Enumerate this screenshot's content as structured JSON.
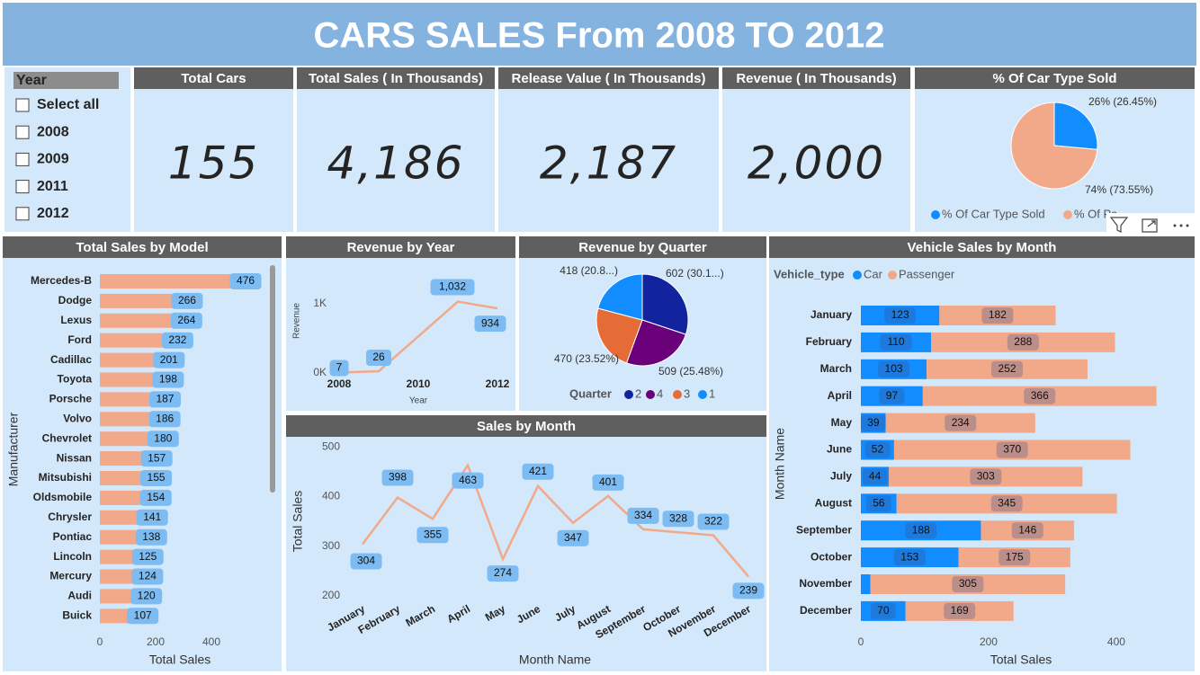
{
  "title": "CARS SALES From 2008 TO 2012",
  "slicer": {
    "title": "Year",
    "options": [
      "Select all",
      "2008",
      "2009",
      "2011",
      "2012"
    ]
  },
  "kpis": [
    {
      "label": "Total Cars",
      "value": "155"
    },
    {
      "label": "Total Sales ( In Thousands)",
      "value": "4,186"
    },
    {
      "label": "Release Value ( In Thousands)",
      "value": "2,187"
    },
    {
      "label": "Revenue ( In Thousands)",
      "value": "2,000"
    }
  ],
  "chart_data": [
    {
      "type": "pie",
      "title": "% Of Car Type Sold",
      "categories": [
        "% Of Car Type Sold",
        "% Of Pa"
      ],
      "values": [
        26.45,
        73.55
      ],
      "value_labels": [
        "26% (26.45%)",
        "74% (73.55%)"
      ],
      "colors": [
        "#118DFF",
        "#F2A98A"
      ]
    },
    {
      "type": "hbar",
      "title": "Total Sales by Model",
      "categories": [
        "Mercedes-B",
        "Dodge",
        "Lexus",
        "Ford",
        "Cadillac",
        "Toyota",
        "Porsche",
        "Volvo",
        "Chevrolet",
        "Nissan",
        "Mitsubishi",
        "Oldsmobile",
        "Chrysler",
        "Pontiac",
        "Lincoln",
        "Mercury",
        "Audi",
        "Buick"
      ],
      "values": [
        476,
        266,
        264,
        232,
        201,
        198,
        187,
        186,
        180,
        157,
        155,
        154,
        141,
        138,
        125,
        124,
        120,
        107
      ],
      "color": "#F2A98A",
      "xlabel": "Total Sales",
      "ylabel": "Manufacturer",
      "xlim": [
        0,
        600
      ],
      "xticks": [
        0,
        200,
        400
      ]
    },
    {
      "type": "line",
      "title": "Revenue by Year",
      "x": [
        2008,
        2009,
        2011,
        2012
      ],
      "values": [
        7,
        26,
        1032,
        934
      ],
      "value_labels": [
        "7",
        "26",
        "1,032",
        "934"
      ],
      "color": "#F2A98A",
      "xlabel": "Year",
      "ylabel": "Revenue",
      "xlim": [
        2008,
        2012
      ],
      "xticks": [
        2008,
        2010,
        2012
      ],
      "ylim": [
        0,
        1500
      ],
      "yticks": [
        {
          "value": 0,
          "label": "0K"
        },
        {
          "value": 1000,
          "label": "1K"
        }
      ]
    },
    {
      "type": "pie",
      "title": "Revenue by Quarter",
      "legend_title": "Quarter",
      "categories": [
        "2",
        "4",
        "3",
        "1"
      ],
      "values": [
        602,
        509,
        470,
        418
      ],
      "value_labels": [
        "602 (30.1...)",
        "509 (25.48%)",
        "470 (23.52%)",
        "418 (20.8...)"
      ],
      "colors": [
        "#12239E",
        "#6B007B",
        "#E66C37",
        "#118DFF"
      ]
    },
    {
      "type": "line",
      "title": "Sales by Month",
      "categories": [
        "January",
        "February",
        "March",
        "April",
        "May",
        "June",
        "July",
        "August",
        "September",
        "October",
        "November",
        "December"
      ],
      "values": [
        304,
        398,
        355,
        463,
        274,
        421,
        347,
        401,
        334,
        328,
        322,
        239
      ],
      "color": "#F2A98A",
      "xlabel": "Month Name",
      "ylabel": "Total Sales",
      "ylim": [
        190,
        510
      ],
      "yticks": [
        200,
        300,
        400,
        500
      ]
    },
    {
      "type": "stacked_hbar",
      "title": "Vehicle Sales by Month",
      "legend_title": "Vehicle_type",
      "categories": [
        "January",
        "February",
        "March",
        "April",
        "May",
        "June",
        "July",
        "August",
        "September",
        "October",
        "November",
        "December"
      ],
      "series": [
        {
          "name": "Car",
          "color": "#118DFF",
          "values": [
            123,
            110,
            103,
            97,
            39,
            52,
            44,
            56,
            188,
            153,
            15,
            70
          ]
        },
        {
          "name": "Passenger",
          "color": "#F2A98A",
          "values": [
            182,
            288,
            252,
            366,
            234,
            370,
            303,
            345,
            146,
            175,
            305,
            169
          ]
        }
      ],
      "xlabel": "Total Sales",
      "ylabel": "Month Name",
      "xlim": [
        0,
        510
      ],
      "xticks": [
        0,
        200,
        400
      ]
    }
  ]
}
